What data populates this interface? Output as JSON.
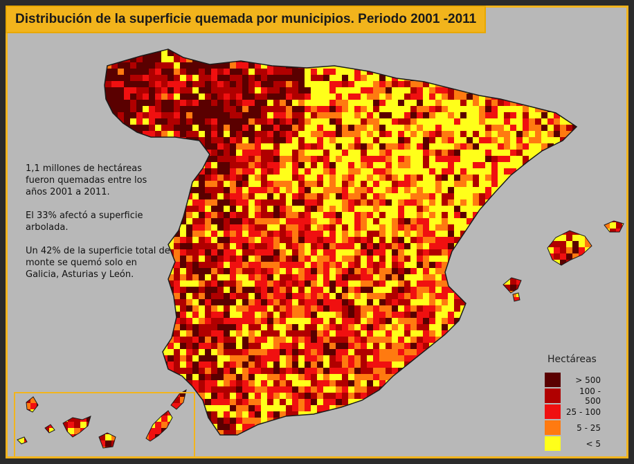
{
  "title": "Distribución de la superficie quemada por municipios. Periodo 2001 -2011",
  "notes": [
    "1,1 millones de hectáreas fueron quemadas entre los años 2001 a 2011.",
    "El 33% afectó a superficie arbolada.",
    "Un 42% de la superficie total de monte se quemó solo en Galicia, Asturias y León."
  ],
  "legend": {
    "title": "Hectáreas",
    "classes": [
      {
        "label": "> 500",
        "color": "#5a0000"
      },
      {
        "label": "100 - 500",
        "color": "#b00000"
      },
      {
        "label": "25 - 100",
        "color": "#f01010"
      },
      {
        "label": "5 - 25",
        "color": "#ff7a10"
      },
      {
        "label": "< 5",
        "color": "#ffff1a"
      }
    ]
  },
  "colors": {
    "background": "#b8b8b8",
    "frame": "#2b2b2b",
    "accent": "#f2b41c",
    "border": "#1a1a1a"
  }
}
